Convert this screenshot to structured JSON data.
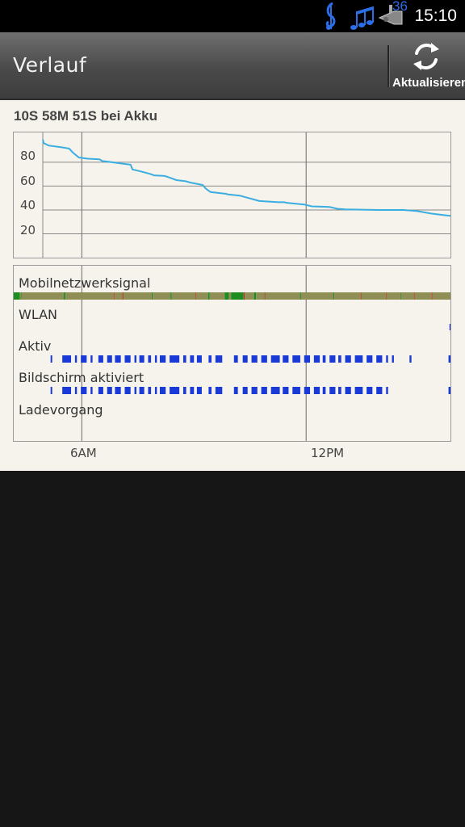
{
  "status_bar": {
    "time": "15:10",
    "notification_count": "36",
    "icons": [
      "music-note-icon",
      "music-notes-icon",
      "trumpet-icon"
    ]
  },
  "action_bar": {
    "title": "Verlauf",
    "refresh_label": "Aktualisieren",
    "refresh_icon": "refresh-icon"
  },
  "summary": "10S 58M 51S bei Akku",
  "rows": {
    "mobile_signal": "Mobilnetzwerksignal",
    "wifi": "WLAN",
    "active": "Aktiv",
    "screen_on": "Bildschirm aktiviert",
    "charging": "Ladevorgang"
  },
  "x_axis": {
    "ticks": [
      "6AM",
      "12PM"
    ]
  },
  "colors": {
    "accent": "#3aaee0",
    "bar_blue": "#1a3ad8",
    "signal_good": "#1e8c1e",
    "signal_mid": "#8f8f55",
    "signal_bad": "#c03028",
    "background": "#f6f3ec"
  },
  "chart_data": {
    "type": "line",
    "title": "",
    "xlabel": "",
    "ylabel": "",
    "ylim": [
      0,
      105
    ],
    "yticks": [
      "20",
      "40",
      "60",
      "80"
    ],
    "series": [
      {
        "x": [
          0,
          0.05,
          0.3,
          1.0,
          1.35,
          1.55,
          1.85,
          2.3,
          2.9,
          3.05,
          3.55,
          4.0,
          4.5,
          4.6,
          5.1,
          5.55,
          5.7,
          6.25,
          6.45,
          6.85,
          7.35,
          7.55,
          8.2,
          8.35,
          8.6,
          9.4,
          9.5,
          10.1,
          11.1,
          11.6,
          12.1,
          12.4,
          12.5,
          13.4,
          13.8,
          14.7,
          15.1,
          15.5,
          17.2,
          18.5,
          19.2,
          19.9,
          20.4,
          20.9
        ],
        "y": [
          99,
          96,
          94,
          92.5,
          91.5,
          88,
          84,
          83,
          82.5,
          81,
          80,
          79,
          78,
          74,
          72,
          70,
          69,
          68.5,
          67.5,
          65,
          64,
          63,
          61,
          58,
          55,
          53.5,
          53,
          52,
          47.5,
          47,
          46.5,
          46.5,
          46,
          44.5,
          43,
          42.5,
          41,
          40.5,
          40,
          40,
          39,
          37,
          36,
          35
        ]
      }
    ],
    "x_ticks": [
      {
        "label": "6AM",
        "x": 2
      },
      {
        "label": "12PM",
        "x": 13.5
      }
    ],
    "x_range": [
      0,
      20.9
    ]
  },
  "tracks": {
    "signal_segments": [
      [
        0,
        0.3,
        "good"
      ],
      [
        0.3,
        0.35,
        "mid"
      ],
      [
        0.35,
        0.37,
        "good"
      ],
      [
        0.37,
        2.4,
        "mid"
      ],
      [
        2.4,
        2.48,
        "good"
      ],
      [
        2.48,
        4.8,
        "mid"
      ],
      [
        4.8,
        4.84,
        "bad"
      ],
      [
        4.84,
        5.2,
        "mid"
      ],
      [
        5.2,
        5.25,
        "bad"
      ],
      [
        5.25,
        6.6,
        "mid"
      ],
      [
        6.6,
        6.65,
        "good"
      ],
      [
        6.65,
        7.5,
        "mid"
      ],
      [
        7.5,
        7.56,
        "good"
      ],
      [
        7.56,
        8.7,
        "mid"
      ],
      [
        8.7,
        8.73,
        "bad"
      ],
      [
        8.73,
        9.3,
        "mid"
      ],
      [
        9.3,
        9.38,
        "good"
      ],
      [
        9.38,
        10.1,
        "mid"
      ],
      [
        10.1,
        10.3,
        "good"
      ],
      [
        10.3,
        10.4,
        "mid"
      ],
      [
        10.4,
        11.0,
        "good"
      ],
      [
        11.0,
        11.05,
        "bad"
      ],
      [
        11.05,
        11.5,
        "mid"
      ],
      [
        11.5,
        11.6,
        "good"
      ],
      [
        11.6,
        12.0,
        "mid"
      ],
      [
        12.0,
        12.03,
        "bad"
      ],
      [
        12.03,
        13.7,
        "mid"
      ],
      [
        13.7,
        13.75,
        "good"
      ],
      [
        13.75,
        15.3,
        "mid"
      ],
      [
        15.3,
        15.34,
        "good"
      ],
      [
        15.34,
        16.6,
        "mid"
      ],
      [
        16.6,
        16.63,
        "bad"
      ],
      [
        16.63,
        17.8,
        "mid"
      ],
      [
        17.8,
        17.83,
        "bad"
      ],
      [
        17.83,
        18.5,
        "mid"
      ],
      [
        18.5,
        18.53,
        "good"
      ],
      [
        18.53,
        19.15,
        "mid"
      ],
      [
        19.15,
        19.18,
        "bad"
      ],
      [
        19.18,
        20.0,
        "mid"
      ],
      [
        20.0,
        20.04,
        "bad"
      ],
      [
        20.04,
        20.9,
        "mid"
      ]
    ],
    "wifi_segments": [
      [
        20.85,
        20.9
      ]
    ],
    "active_segments": [
      [
        0.4,
        0.48
      ],
      [
        1.0,
        1.45
      ],
      [
        1.65,
        1.75
      ],
      [
        1.95,
        2.25
      ],
      [
        2.45,
        2.55
      ],
      [
        2.85,
        3.1
      ],
      [
        3.3,
        3.55
      ],
      [
        3.7,
        4.0
      ],
      [
        4.2,
        4.5
      ],
      [
        4.7,
        4.8
      ],
      [
        4.95,
        5.2
      ],
      [
        5.4,
        5.55
      ],
      [
        5.75,
        5.85
      ],
      [
        6.0,
        6.3
      ],
      [
        6.5,
        7.0
      ],
      [
        7.2,
        7.35
      ],
      [
        7.55,
        7.75
      ],
      [
        7.9,
        8.15
      ],
      [
        8.5,
        8.65
      ],
      [
        8.85,
        9.2
      ],
      [
        9.8,
        10.0
      ],
      [
        10.25,
        10.5
      ],
      [
        10.7,
        11.0
      ],
      [
        11.2,
        11.5
      ],
      [
        11.7,
        12.15
      ],
      [
        12.3,
        12.6
      ],
      [
        12.8,
        13.2
      ],
      [
        13.4,
        13.7
      ],
      [
        13.9,
        14.2
      ],
      [
        14.35,
        14.5
      ],
      [
        14.7,
        15.0
      ],
      [
        15.15,
        15.3
      ],
      [
        15.5,
        15.8
      ],
      [
        16.0,
        16.4
      ],
      [
        16.6,
        16.9
      ],
      [
        17.1,
        17.4
      ],
      [
        17.6,
        17.7
      ],
      [
        17.9,
        18.0
      ],
      [
        18.8,
        18.9
      ],
      [
        20.8,
        20.9
      ]
    ],
    "screen_segments": [
      [
        0.4,
        0.48
      ],
      [
        1.0,
        1.45
      ],
      [
        1.65,
        1.75
      ],
      [
        1.95,
        2.25
      ],
      [
        2.45,
        2.55
      ],
      [
        2.85,
        3.1
      ],
      [
        3.3,
        3.55
      ],
      [
        3.7,
        4.0
      ],
      [
        4.2,
        4.5
      ],
      [
        4.7,
        4.8
      ],
      [
        4.95,
        5.2
      ],
      [
        5.4,
        5.55
      ],
      [
        5.75,
        5.85
      ],
      [
        6.0,
        6.3
      ],
      [
        6.5,
        7.0
      ],
      [
        7.2,
        7.35
      ],
      [
        7.55,
        7.75
      ],
      [
        7.9,
        8.15
      ],
      [
        8.5,
        8.65
      ],
      [
        8.85,
        9.2
      ],
      [
        9.8,
        10.0
      ],
      [
        10.25,
        10.5
      ],
      [
        10.7,
        11.0
      ],
      [
        11.2,
        11.5
      ],
      [
        11.7,
        12.15
      ],
      [
        12.3,
        12.6
      ],
      [
        12.8,
        13.2
      ],
      [
        13.4,
        13.7
      ],
      [
        13.9,
        14.2
      ],
      [
        14.35,
        14.5
      ],
      [
        14.7,
        15.0
      ],
      [
        15.15,
        15.3
      ],
      [
        15.5,
        15.8
      ],
      [
        16.0,
        16.4
      ],
      [
        16.6,
        16.9
      ],
      [
        17.1,
        17.4
      ],
      [
        17.6,
        17.7
      ],
      [
        20.8,
        20.9
      ]
    ],
    "charging_segments": []
  }
}
